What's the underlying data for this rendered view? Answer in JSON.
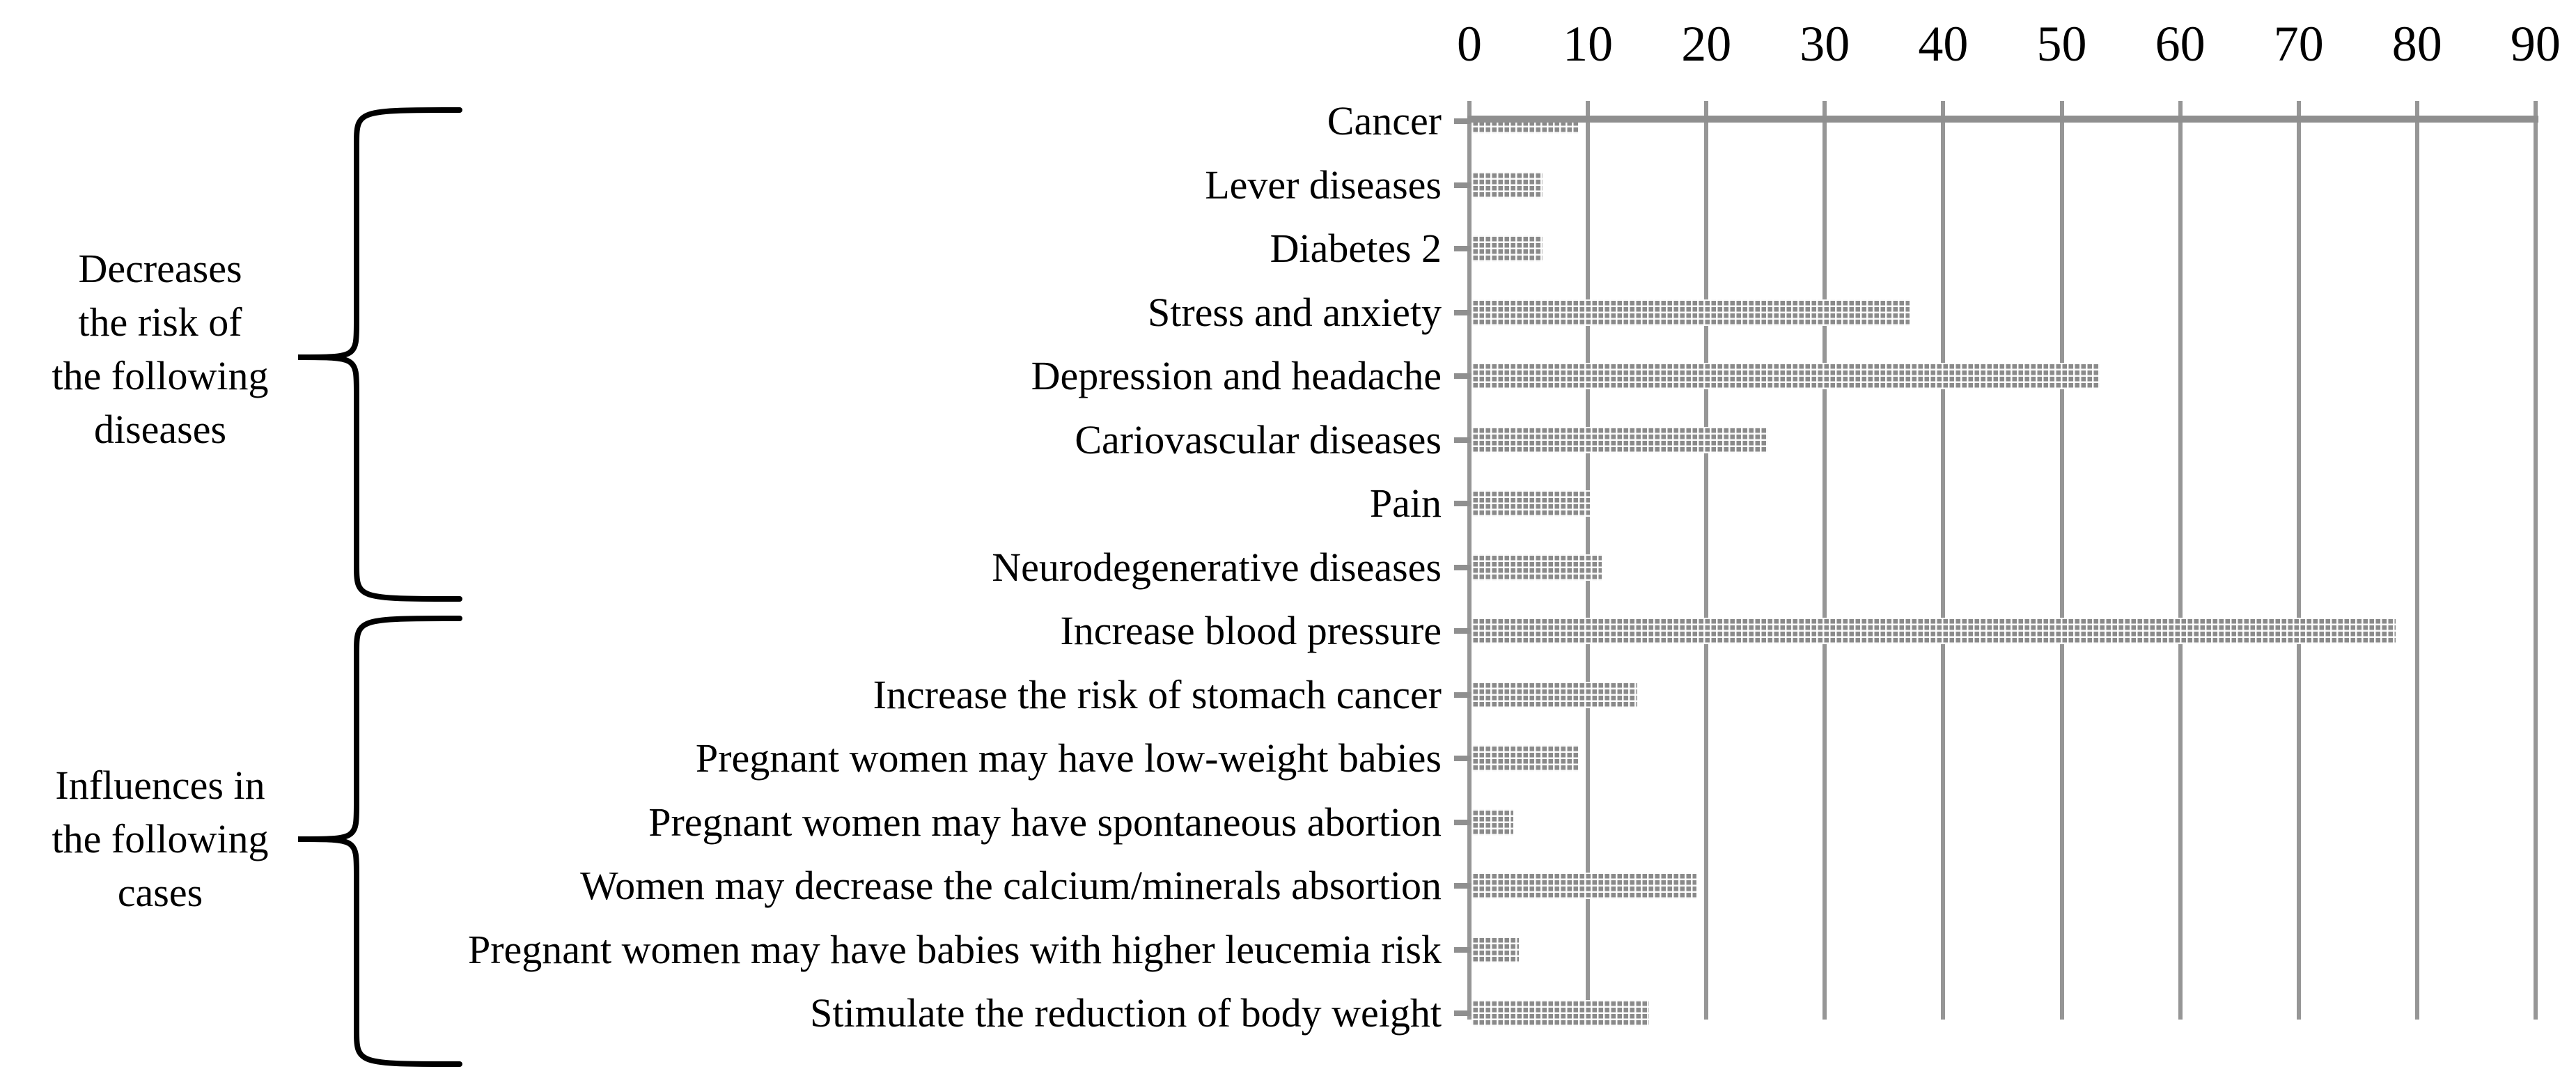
{
  "chart_data": {
    "type": "bar",
    "orientation": "horizontal",
    "title": "",
    "xlabel": "",
    "ylabel": "",
    "xlim": [
      0,
      90
    ],
    "x_ticks": [
      0,
      10,
      20,
      30,
      40,
      50,
      60,
      70,
      80,
      90
    ],
    "grid": "vertical-major-gridlines",
    "legend": "none",
    "categories": [
      "Cancer",
      "Lever diseases",
      "Diabetes 2",
      "Stress and anxiety",
      "Depression and headache",
      "Cariovascular diseases",
      "Pain",
      "Neurodegenerative diseases",
      "Increase blood pressure",
      "Increase the risk of stomach cancer",
      "Pregnant women may have low-weight babies",
      "Pregnant women may have spontaneous abortion",
      "Women may decrease the calcium/minerals absortion",
      "Pregnant women may have babies with higher leucemia risk",
      "Stimulate the reduction of body weight"
    ],
    "values": [
      9,
      6,
      6,
      37,
      53,
      25,
      10,
      11,
      78,
      14,
      9,
      3.5,
      19,
      4,
      15
    ]
  },
  "side_groups": [
    {
      "lines": [
        "Decreases",
        "the risk of",
        "the following",
        "diseases"
      ]
    },
    {
      "lines": [
        "Influences in",
        "the following",
        "cases"
      ]
    }
  ],
  "colors": {
    "bar": "#8a8a8a",
    "gridline": "#969696",
    "category_axis_line": "#8f8f8f",
    "text": "#000000",
    "brace": "#000000"
  }
}
